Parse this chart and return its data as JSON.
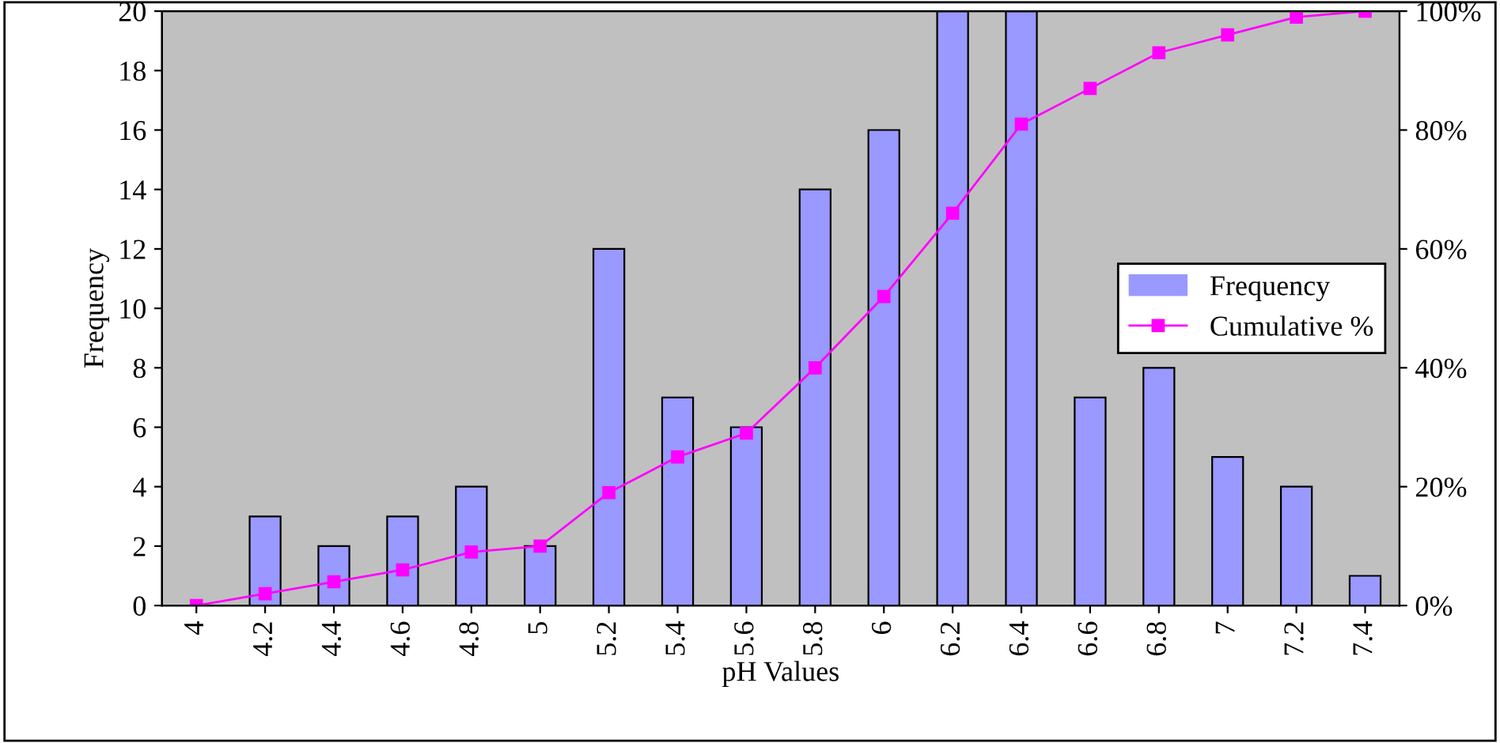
{
  "chart_data": {
    "type": "bar",
    "xlabel": "pH Values",
    "ylabel": "Frequency",
    "categories": [
      "4",
      "4.2",
      "4.4",
      "4.6",
      "4.8",
      "5",
      "5.2",
      "5.4",
      "5.6",
      "5.8",
      "6",
      "6.2",
      "6.4",
      "6.6",
      "6.8",
      "7",
      "7.2",
      "7.4"
    ],
    "series": [
      {
        "name": "Frequency",
        "color": "#9999ff",
        "values": [
          0,
          3,
          2,
          3,
          4,
          2,
          12,
          7,
          6,
          14,
          16,
          20,
          20,
          7,
          8,
          5,
          4,
          1
        ]
      },
      {
        "name": "Cumulative %",
        "type": "line",
        "axis": "y2",
        "color": "#ff00ff",
        "marker": "square",
        "values": [
          0,
          2,
          4,
          6,
          9,
          10,
          19,
          25,
          29,
          40,
          52,
          66,
          81,
          87,
          93,
          96,
          99,
          100
        ]
      }
    ],
    "ylim": [
      0,
      20
    ],
    "yticks": [
      0,
      2,
      4,
      6,
      8,
      10,
      12,
      14,
      16,
      18,
      20
    ],
    "y2lim": [
      0,
      100
    ],
    "y2ticks": [
      {
        "value": 0,
        "label": "0%"
      },
      {
        "value": 20,
        "label": "20%"
      },
      {
        "value": 40,
        "label": "40%"
      },
      {
        "value": 60,
        "label": "60%"
      },
      {
        "value": 80,
        "label": "80%"
      },
      {
        "value": 100,
        "label": "100%"
      }
    ],
    "grid": false,
    "legend": "right"
  }
}
